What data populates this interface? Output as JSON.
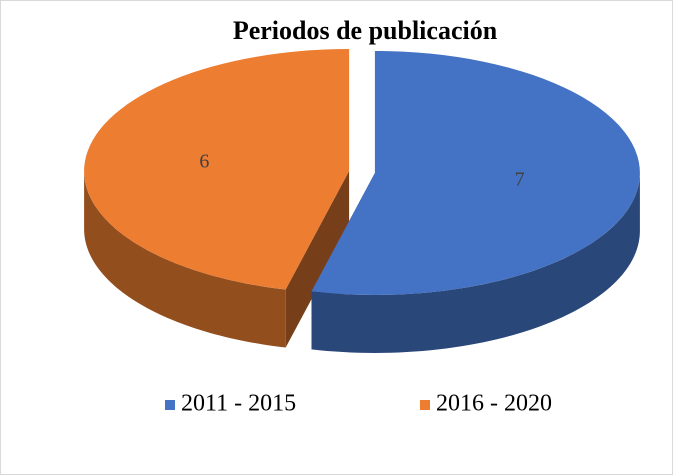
{
  "chart_data": {
    "type": "pie",
    "title": "Periodos de publicación",
    "categories": [
      "2011 - 2015",
      "2016 - 2020"
    ],
    "values": [
      7,
      6
    ],
    "colors": [
      "#4472c4",
      "#ed7d31"
    ],
    "legend": "bottom"
  }
}
